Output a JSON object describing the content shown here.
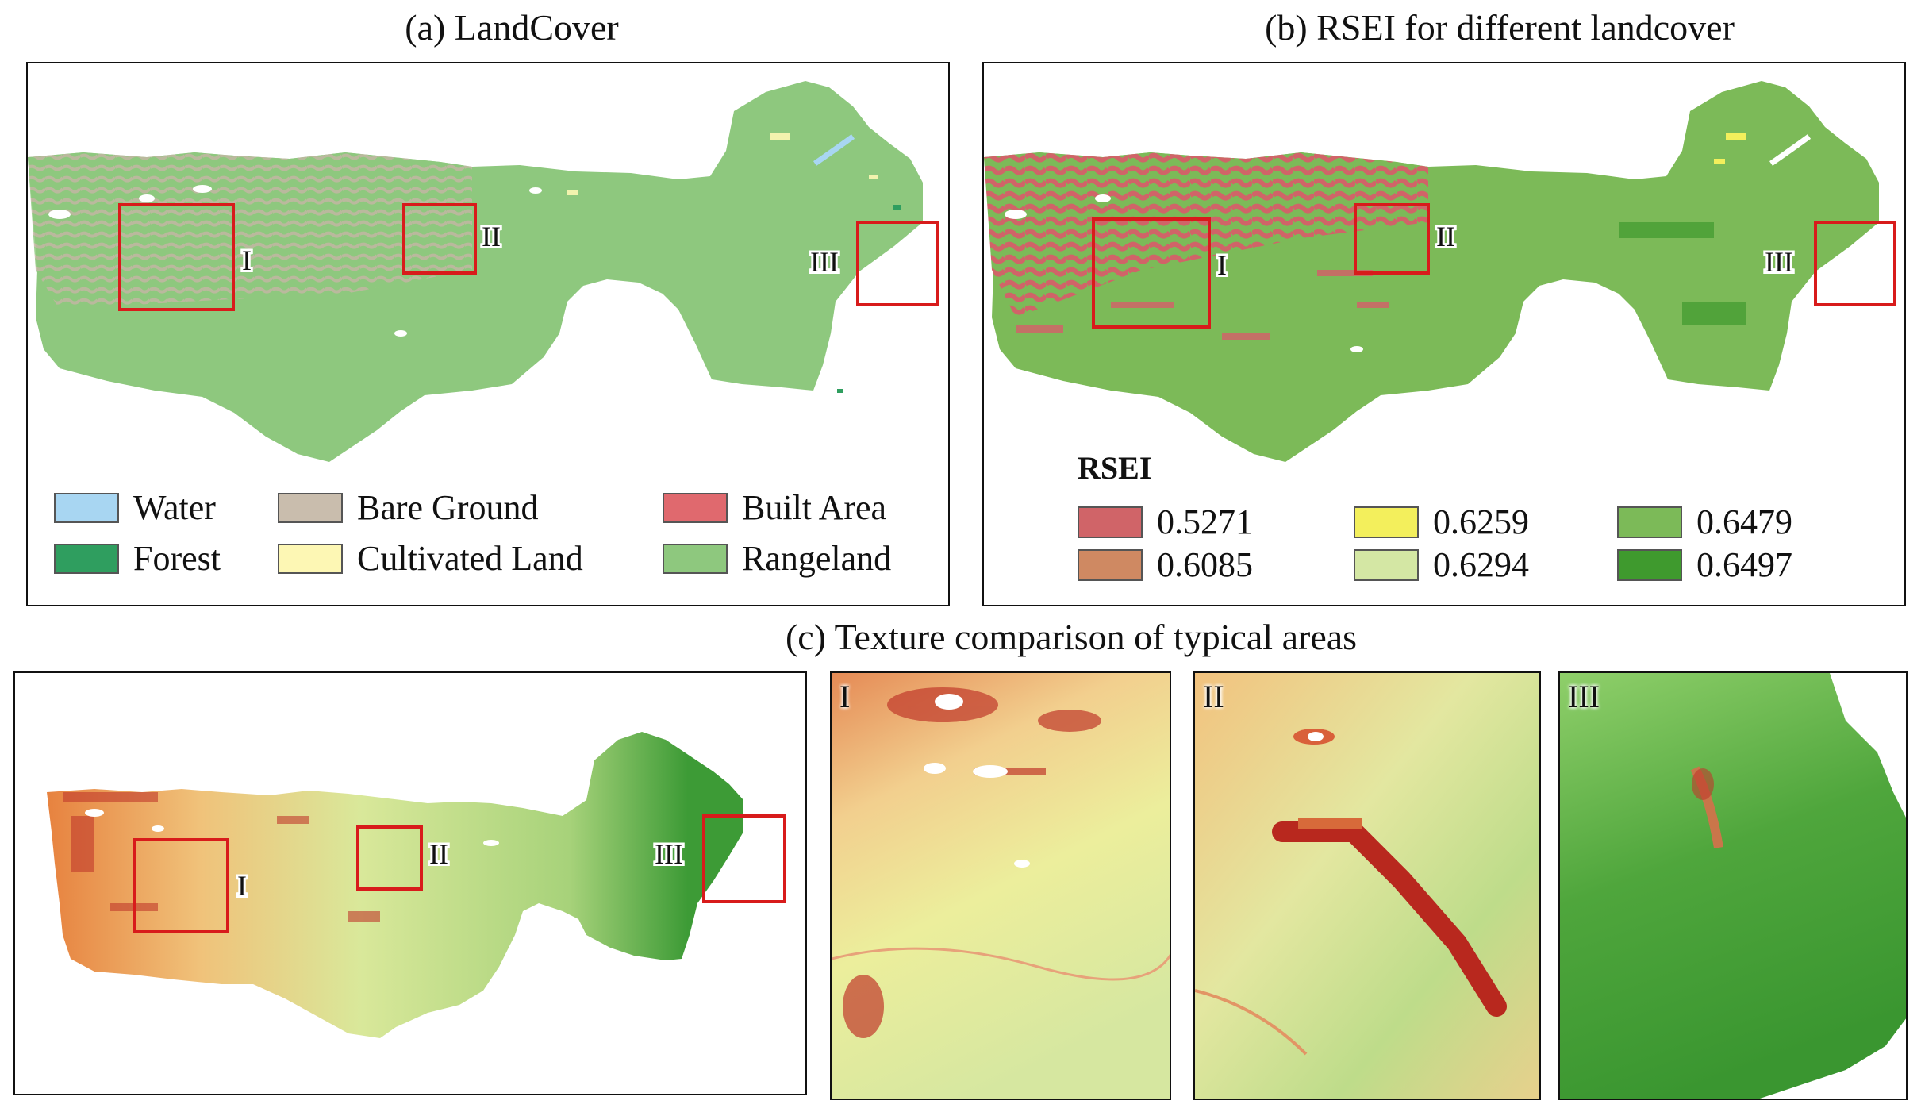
{
  "panels": {
    "a": {
      "title": "(a) LandCover",
      "legend": [
        {
          "label": "Water",
          "color": "#a8d6f2"
        },
        {
          "label": "Bare Ground",
          "color": "#c9bdad"
        },
        {
          "label": "Built Area",
          "color": "#e0696e"
        },
        {
          "label": "Forest",
          "color": "#2f9e5f"
        },
        {
          "label": "Cultivated Land",
          "color": "#fdf7b4"
        },
        {
          "label": "Rangeland",
          "color": "#8ec87e"
        }
      ]
    },
    "b": {
      "title": "(b) RSEI for different landcover",
      "legend_title": "RSEI",
      "legend": [
        {
          "label": "0.5271",
          "color": "#d06468"
        },
        {
          "label": "0.6259",
          "color": "#f3ef5c"
        },
        {
          "label": "0.6479",
          "color": "#7cba58"
        },
        {
          "label": "0.6085",
          "color": "#cf8962"
        },
        {
          "label": "0.6294",
          "color": "#d4e7a4"
        },
        {
          "label": "0.6497",
          "color": "#3f9a2e"
        }
      ]
    },
    "c": {
      "title": "(c) Texture comparison of typical areas",
      "zoom_labels": [
        "I",
        "II",
        "III"
      ]
    }
  },
  "region_labels": [
    "I",
    "II",
    "III"
  ]
}
